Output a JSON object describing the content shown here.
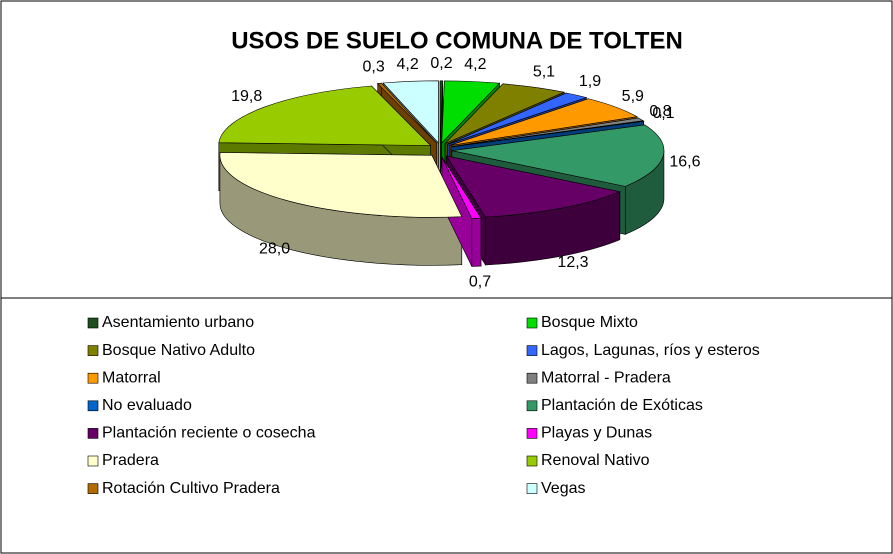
{
  "chart_data": {
    "type": "pie3d",
    "title": "USOS DE SUELO COMUNA DE TOLTEN",
    "categories": [
      "Asentamiento urbano",
      "Bosque Mixto",
      "Bosque Nativo Adulto",
      "Lagos, Lagunas, ríos y esteros",
      "Matorral",
      "Matorral - Pradera",
      "No evaluado",
      "Plantación de Exóticas",
      "Plantación reciente o cosecha",
      "Playas y Dunas",
      "Pradera",
      "Renoval Nativo",
      "Rotación Cultivo Pradera",
      "Vegas"
    ],
    "values": [
      0.2,
      4.2,
      5.1,
      1.9,
      5.9,
      0.8,
      0.1,
      16.6,
      12.3,
      0.7,
      28.0,
      19.8,
      0.3,
      4.2
    ],
    "value_labels": [
      "0,2",
      "4,2",
      "5,1",
      "1,9",
      "5,9",
      "0,8",
      "0,1",
      "16,6",
      "12,3",
      "0,7",
      "28,0",
      "19,8",
      "0,3",
      "4,2"
    ],
    "colors": [
      "#1e4d1e",
      "#00dd00",
      "#808000",
      "#3366ff",
      "#ff9900",
      "#808080",
      "#0066cc",
      "#339966",
      "#660066",
      "#ff00ff",
      "#ffffcc",
      "#99cc00",
      "#b36b00",
      "#ccffff"
    ],
    "legend": "bottom"
  }
}
